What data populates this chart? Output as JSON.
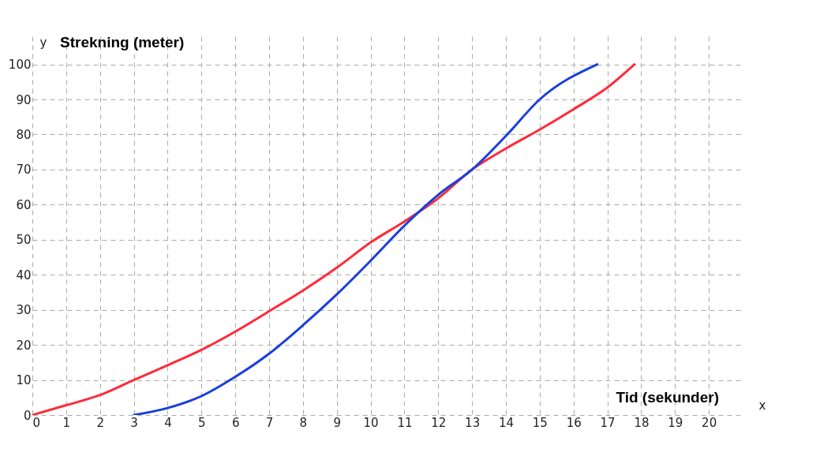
{
  "chart_data": {
    "type": "line",
    "xlabel": "Tid (sekunder)",
    "ylabel": "Strekning (meter)",
    "annotations": [
      "y",
      "x"
    ],
    "xlim": [
      0,
      21
    ],
    "ylim": [
      0,
      108
    ],
    "xticks": [
      0,
      1,
      2,
      3,
      4,
      5,
      6,
      7,
      8,
      9,
      10,
      11,
      12,
      13,
      14,
      15,
      16,
      17,
      18,
      19,
      20
    ],
    "yticks": [
      0,
      10,
      20,
      30,
      40,
      50,
      60,
      70,
      80,
      90,
      100
    ],
    "grid": true,
    "line_style": "solid",
    "marker": "none",
    "series": [
      {
        "color": "#ff2a3a",
        "x": [
          0,
          1,
          2,
          3,
          4,
          5,
          6,
          7,
          8,
          9,
          10,
          11,
          12,
          13,
          14,
          15,
          16,
          17,
          17.8
        ],
        "values": [
          0,
          2.8,
          5.7,
          10,
          14.2,
          18.6,
          23.8,
          29.6,
          35.5,
          42,
          49.2,
          55.2,
          61.8,
          70,
          76,
          81.4,
          87.2,
          93.4,
          100
        ]
      },
      {
        "color": "#1a3fdc",
        "x": [
          3,
          4,
          5,
          6,
          7,
          8,
          9,
          10,
          11,
          12,
          13,
          14,
          15,
          16.7
        ],
        "values": [
          0,
          2,
          5.4,
          10.9,
          17.5,
          25.6,
          34.4,
          44,
          54,
          62.8,
          70,
          79.6,
          90,
          100
        ]
      }
    ]
  }
}
